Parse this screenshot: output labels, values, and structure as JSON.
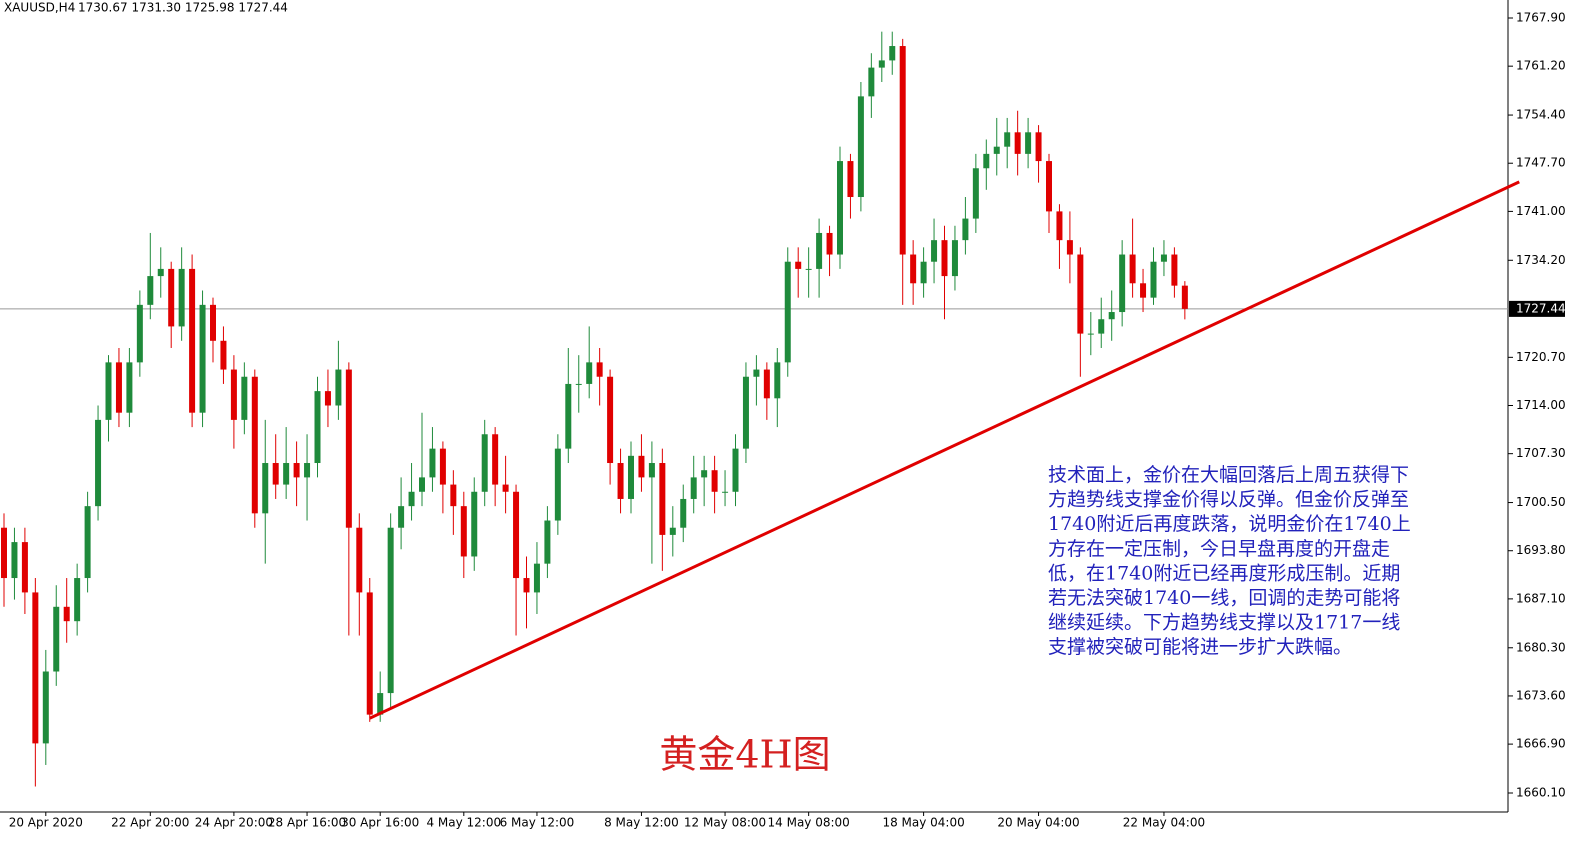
{
  "chart_data": {
    "type": "candlestick",
    "header": {
      "symbol": "XAUUSD,H4",
      "quote": "1730.67 1731.30 1725.98 1727.44"
    },
    "title": "黄金4H图",
    "annotation": [
      "技术面上，金价在大幅回落后上周五获得下",
      "方趋势线支撑金价得以反弹。但金价反弹至",
      "1740附近后再度跌落，说明金价在1740上",
      "方存在一定压制，今日早盘再度的开盘走",
      "低，在1740附近已经再度形成压制。近期",
      "若无法突破1740一线，回调的走势可能将",
      "继续延续。下方趋势线支撑以及1717一线",
      "支撑被突破可能将进一步扩大跌幅。"
    ],
    "up_color": "#1f8a3b",
    "down_color": "#e00000",
    "trendline_color": "#e00000",
    "categories": [
      null,
      null,
      null,
      null,
      "20 Apr 2020",
      null,
      null,
      null,
      null,
      null,
      null,
      null,
      null,
      null,
      "22 Apr 20:00",
      null,
      null,
      null,
      null,
      null,
      null,
      null,
      "24 Apr 20:00",
      null,
      null,
      null,
      null,
      null,
      null,
      "28 Apr 16:00",
      null,
      null,
      null,
      null,
      null,
      null,
      "30 Apr 16:00",
      null,
      null,
      null,
      null,
      null,
      null,
      null,
      "4 May 12:00",
      null,
      null,
      null,
      null,
      null,
      null,
      "6 May 12:00",
      null,
      null,
      null,
      null,
      null,
      null,
      null,
      null,
      null,
      "8 May 12:00",
      null,
      null,
      null,
      null,
      null,
      null,
      null,
      "12 May 08:00",
      null,
      null,
      null,
      null,
      null,
      null,
      null,
      "14 May 08:00",
      null,
      null,
      null,
      null,
      null,
      null,
      null,
      null,
      null,
      null,
      "18 May 04:00",
      null,
      null,
      null,
      null,
      null,
      null,
      null,
      null,
      null,
      null,
      "20 May 04:00",
      null,
      null,
      null,
      null,
      null,
      null,
      null,
      null,
      null,
      null,
      null,
      "22 May 04:00",
      null,
      null
    ],
    "open": [
      1697,
      1690,
      1695,
      1688,
      1667,
      1677,
      1686,
      1684,
      1690,
      1700,
      1712,
      1720,
      1713,
      1720,
      1728,
      1732,
      1733,
      1725,
      1733,
      1713,
      1728,
      1723,
      1719,
      1712,
      1718,
      1699,
      1706,
      1703,
      1706,
      1704,
      1706,
      1716,
      1714,
      1719,
      1697,
      1688,
      1671,
      1674,
      1697,
      1700,
      1702,
      1704,
      1708,
      1703,
      1700,
      1693,
      1702,
      1710,
      1703,
      1702,
      1690,
      1688,
      1692,
      1698,
      1708,
      1717,
      1717,
      1720,
      1718,
      1706,
      1701,
      1707,
      1704,
      1706,
      1696,
      1697,
      1701,
      1704,
      1705,
      1702,
      1702,
      1708,
      1718,
      1719,
      1715,
      1720,
      1734,
      1733,
      1733,
      1738,
      1735,
      1748,
      1743,
      1757,
      1761,
      1762,
      1764,
      1735,
      1731,
      1734,
      1737,
      1732,
      1737,
      1740,
      1747,
      1749,
      1750,
      1752,
      1749,
      1752,
      1748,
      1741,
      1737,
      1735,
      1724,
      1724,
      1726,
      1727,
      1735,
      1731,
      1729,
      1734,
      1735,
      1730.67
    ],
    "high": [
      1699,
      1697,
      1697,
      1690,
      1680,
      1689,
      1690,
      1692,
      1702,
      1714,
      1721,
      1722,
      1722,
      1730,
      1738,
      1736,
      1734,
      1736,
      1735,
      1730,
      1729,
      1725,
      1721,
      1720,
      1719,
      1712,
      1710,
      1711,
      1709,
      1710,
      1718,
      1719,
      1723,
      1720,
      1699,
      1690,
      1677,
      1699,
      1704,
      1706,
      1713,
      1711,
      1709,
      1705,
      1702,
      1704,
      1712,
      1711,
      1707,
      1703,
      1693,
      1695,
      1700,
      1710,
      1722,
      1721,
      1725,
      1722,
      1719,
      1708,
      1709,
      1710,
      1709,
      1708,
      1700,
      1703,
      1707,
      1707,
      1707,
      1705,
      1710,
      1720,
      1721,
      1720,
      1722,
      1736,
      1736,
      1736,
      1740,
      1739,
      1750,
      1749,
      1759,
      1763,
      1766,
      1766,
      1765,
      1737,
      1736,
      1740,
      1739,
      1739,
      1743,
      1749,
      1751,
      1754,
      1754,
      1755,
      1754,
      1753,
      1749,
      1742,
      1741,
      1736,
      1727,
      1729,
      1730,
      1737,
      1740,
      1733,
      1736,
      1737,
      1736,
      1731.3
    ],
    "low": [
      1686,
      1687,
      1685,
      1661,
      1664,
      1675,
      1681,
      1682,
      1688,
      1698,
      1709,
      1711,
      1711,
      1718,
      1726,
      1729,
      1722,
      1723,
      1711,
      1711,
      1720,
      1717,
      1708,
      1710,
      1697,
      1692,
      1701,
      1701,
      1700,
      1698,
      1704,
      1711,
      1712,
      1682,
      1682,
      1670,
      1670,
      1672,
      1694,
      1698,
      1700,
      1702,
      1699,
      1696,
      1690,
      1691,
      1700,
      1700,
      1699,
      1682,
      1683,
      1685,
      1690,
      1696,
      1706,
      1713,
      1715,
      1714,
      1703,
      1699,
      1699,
      1702,
      1692,
      1691,
      1693,
      1695,
      1699,
      1700,
      1699,
      1700,
      1700,
      1706,
      1714,
      1712,
      1711,
      1718,
      1729,
      1729,
      1729,
      1732,
      1733,
      1740,
      1741,
      1754,
      1759,
      1760,
      1728,
      1728,
      1729,
      1731,
      1726,
      1730,
      1735,
      1738,
      1744,
      1746,
      1747,
      1746,
      1747,
      1745,
      1738,
      1733,
      1731,
      1718,
      1721,
      1722,
      1723,
      1725,
      1729,
      1727,
      1728,
      1732,
      1729,
      1725.98
    ],
    "close": [
      1690,
      1695,
      1688,
      1667,
      1677,
      1686,
      1684,
      1690,
      1700,
      1712,
      1720,
      1713,
      1720,
      1728,
      1732,
      1733,
      1725,
      1733,
      1713,
      1728,
      1723,
      1719,
      1712,
      1718,
      1699,
      1706,
      1703,
      1706,
      1704,
      1706,
      1716,
      1714,
      1719,
      1697,
      1688,
      1671,
      1674,
      1697,
      1700,
      1702,
      1704,
      1708,
      1703,
      1700,
      1693,
      1702,
      1710,
      1703,
      1702,
      1690,
      1688,
      1692,
      1698,
      1708,
      1717,
      1717,
      1720,
      1718,
      1706,
      1701,
      1707,
      1704,
      1706,
      1696,
      1697,
      1701,
      1704,
      1705,
      1702,
      1702,
      1708,
      1718,
      1719,
      1715,
      1720,
      1734,
      1733,
      1733,
      1738,
      1735,
      1748,
      1743,
      1757,
      1761,
      1762,
      1764,
      1735,
      1731,
      1734,
      1737,
      1732,
      1737,
      1740,
      1747,
      1749,
      1750,
      1752,
      1749,
      1752,
      1748,
      1741,
      1737,
      1735,
      1724,
      1724,
      1726,
      1727,
      1735,
      1731,
      1729,
      1734,
      1735,
      1730.67,
      1727.44
    ],
    "current_price": 1727.44,
    "trendline": {
      "from": [
        35,
        1670.5
      ],
      "to": [
        145,
        1745.1
      ]
    },
    "ylim": [
      1660.1,
      1767.9
    ],
    "yticks": [
      {
        "value": 1767.9,
        "label": "1767.90"
      },
      {
        "value": 1761.2,
        "label": "1761.20"
      },
      {
        "value": 1754.4,
        "label": "1754.40"
      },
      {
        "value": 1747.7,
        "label": "1747.70"
      },
      {
        "value": 1741,
        "label": "1741.00"
      },
      {
        "value": 1734.2,
        "label": "1734.20"
      },
      {
        "value": 1720.7,
        "label": "1720.70"
      },
      {
        "value": 1714,
        "label": "1714.00"
      },
      {
        "value": 1707.3,
        "label": "1707.30"
      },
      {
        "value": 1700.5,
        "label": "1700.50"
      },
      {
        "value": 1693.8,
        "label": "1693.80"
      },
      {
        "value": 1687.1,
        "label": "1687.10"
      },
      {
        "value": 1680.3,
        "label": "1680.30"
      },
      {
        "value": 1673.6,
        "label": "1673.60"
      },
      {
        "value": 1666.9,
        "label": "1666.90"
      },
      {
        "value": 1660.1,
        "label": "1660.10"
      }
    ]
  }
}
